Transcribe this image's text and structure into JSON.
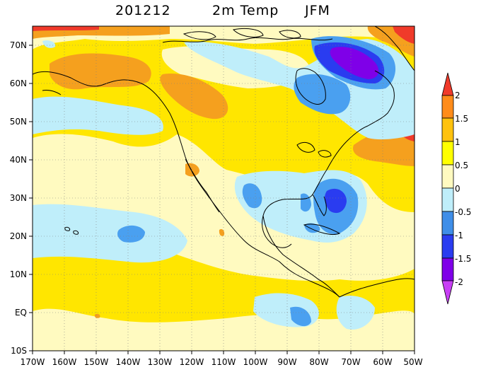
{
  "title": {
    "date": "201212",
    "variable": "2m Temp",
    "season": "JFM"
  },
  "map": {
    "lon_labels": [
      "170W",
      "160W",
      "150W",
      "140W",
      "130W",
      "120W",
      "110W",
      "100W",
      "90W",
      "80W",
      "70W",
      "60W",
      "50W"
    ],
    "lat_labels": [
      "70N",
      "60N",
      "50N",
      "40N",
      "30N",
      "20N",
      "10N",
      "EQ",
      "10S"
    ],
    "lon_range": [
      -170,
      -50
    ],
    "lat_range": [
      -10,
      75
    ]
  },
  "legend": {
    "labels": [
      "2",
      "1.5",
      "1",
      "0.5",
      "0",
      "-0.5",
      "-1",
      "-1.5",
      "-2"
    ],
    "colors": [
      "#f03a2a",
      "#ff8c1a",
      "#ffc20e",
      "#ffff00",
      "#fffac0",
      "#bfeefa",
      "#3f8ee8",
      "#2a3cf0",
      "#7f00e8",
      "#c83ff5"
    ]
  },
  "colors": {
    "very_warm": "#f03a2a",
    "warm_orange": "#f5a01e",
    "light_orange": "#ffc20e",
    "yellow": "#ffe600",
    "pale_yellow": "#fffac0",
    "light_blue": "#bfeefa",
    "mid_blue": "#4aa0f0",
    "blue": "#2a3cf0",
    "violet": "#7f00e8"
  }
}
